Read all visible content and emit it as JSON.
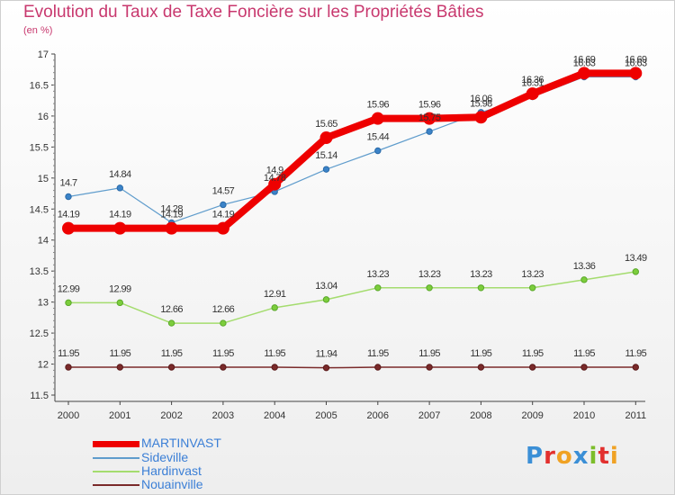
{
  "title": "Evolution du Taux de Taxe Foncière sur les Propriétés Bâties",
  "subtitle": "(en %)",
  "logo": {
    "letters": [
      "P",
      "r",
      "o",
      "x",
      "i",
      "t",
      "i"
    ],
    "colors": [
      "#3b8fd6",
      "#e2302e",
      "#f0a224",
      "#3b8fd6",
      "#7cbd2a",
      "#e2302e",
      "#f0a224"
    ]
  },
  "chart_data": {
    "type": "line",
    "title": "Evolution du Taux de Taxe Foncière sur les Propriétés Bâties",
    "ylabel": "(en %)",
    "x": [
      "2000",
      "2001",
      "2002",
      "2003",
      "2004",
      "2005",
      "2006",
      "2007",
      "2008",
      "2009",
      "2010",
      "2011"
    ],
    "ylim": [
      11.5,
      17
    ],
    "yticks": [
      "11.5",
      "12",
      "12.5",
      "13",
      "13.5",
      "14",
      "14.5",
      "15",
      "15.5",
      "16",
      "16.5",
      "17"
    ],
    "grid": false,
    "legend_position": "bottom-left",
    "series": [
      {
        "name": "MARTINVAST",
        "color": "#ee0000",
        "values": [
          14.19,
          14.19,
          14.19,
          14.19,
          14.9,
          15.65,
          15.96,
          15.96,
          15.98,
          16.36,
          16.69,
          16.69
        ],
        "labels": [
          "14.19",
          "14.19",
          "14.19",
          "14.19",
          "14.9",
          "15.65",
          "15.96",
          "15.96",
          "15.98",
          "16.36",
          "16.69",
          "16.69"
        ]
      },
      {
        "name": "Sideville",
        "color": "#5f9ccc",
        "values": [
          14.7,
          14.84,
          14.28,
          14.57,
          14.78,
          15.14,
          15.44,
          15.75,
          16.06,
          16.31,
          16.63,
          16.63
        ],
        "labels": [
          "14.7",
          "14.84",
          "14.28",
          "14.57",
          "14.78",
          "15.14",
          "15.44",
          "15.75",
          "16.06",
          "16.31",
          "16.63",
          "16.63"
        ]
      },
      {
        "name": "Hardinvast",
        "color": "#a4dc6e",
        "values": [
          12.99,
          12.99,
          12.66,
          12.66,
          12.91,
          13.04,
          13.23,
          13.23,
          13.23,
          13.23,
          13.36,
          13.49
        ],
        "labels": [
          "12.99",
          "12.99",
          "12.66",
          "12.66",
          "12.91",
          "13.04",
          "13.23",
          "13.23",
          "13.23",
          "13.23",
          "13.36",
          "13.49"
        ]
      },
      {
        "name": "Nouainville",
        "color": "#7a2a2a",
        "values": [
          11.95,
          11.95,
          11.95,
          11.95,
          11.95,
          11.94,
          11.95,
          11.95,
          11.95,
          11.95,
          11.95,
          11.95
        ],
        "labels": [
          "11.95",
          "11.95",
          "11.95",
          "11.95",
          "11.95",
          "11.94",
          "11.95",
          "11.95",
          "11.95",
          "11.95",
          "11.95",
          "11.95"
        ]
      }
    ]
  }
}
